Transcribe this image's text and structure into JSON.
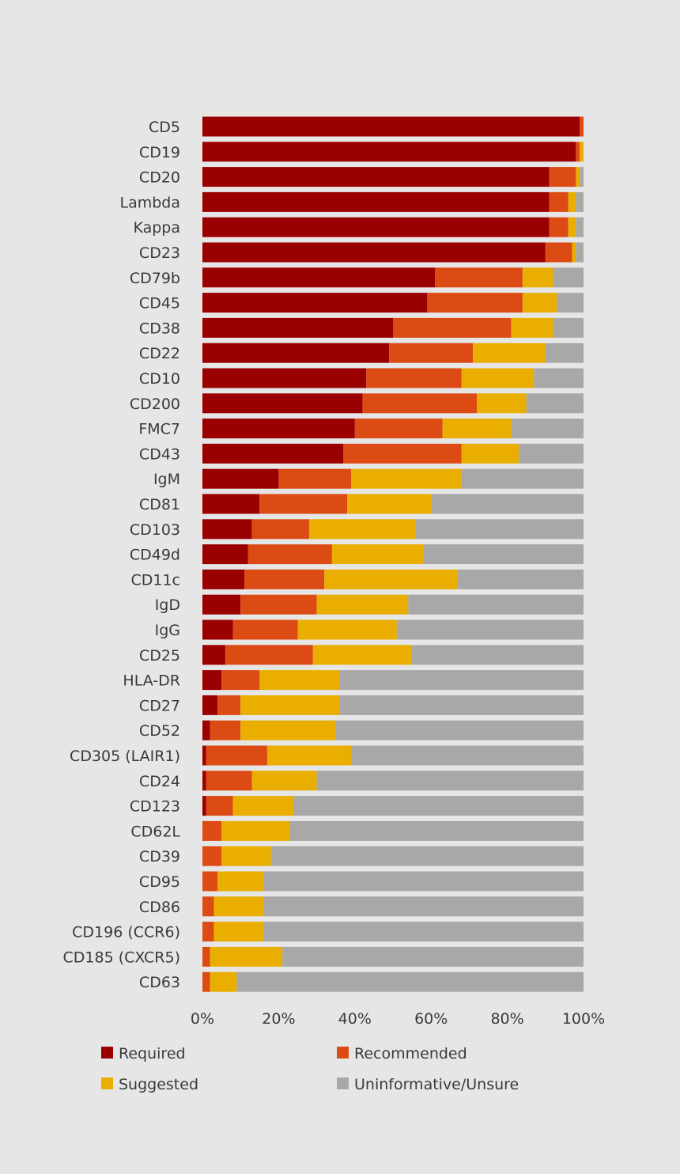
{
  "chart_data": {
    "type": "bar",
    "orientation": "horizontal",
    "stacked": "percent",
    "categories": [
      "CD5",
      "CD19",
      "CD20",
      "Lambda",
      "Kappa",
      "CD23",
      "CD79b",
      "CD45",
      "CD38",
      "CD22",
      "CD10",
      "CD200",
      "FMC7",
      "CD43",
      "IgM",
      "CD81",
      "CD103",
      "CD49d",
      "CD11c",
      "IgD",
      "IgG",
      "CD25",
      "HLA-DR",
      "CD27",
      "CD52",
      "CD305 (LAIR1)",
      "CD24",
      "CD123",
      "CD62L",
      "CD39",
      "CD95",
      "CD86",
      "CD196 (CCR6)",
      "CD185 (CXCR5)",
      "CD63"
    ],
    "series": [
      {
        "name": "Required",
        "color": "#9b0000",
        "values": [
          99,
          98,
          91,
          91,
          91,
          90,
          61,
          59,
          50,
          49,
          43,
          42,
          40,
          37,
          20,
          15,
          13,
          12,
          11,
          10,
          8,
          6,
          5,
          4,
          2,
          1,
          1,
          1,
          0,
          0,
          0,
          0,
          0,
          0,
          0
        ]
      },
      {
        "name": "Recommended",
        "color": "#dc4b14",
        "values": [
          1,
          1,
          7,
          5,
          5,
          7,
          23,
          25,
          31,
          22,
          25,
          30,
          23,
          31,
          19,
          23,
          15,
          22,
          21,
          20,
          17,
          23,
          10,
          6,
          8,
          16,
          12,
          7,
          5,
          5,
          4,
          3,
          3,
          2,
          2
        ]
      },
      {
        "name": "Suggested",
        "color": "#e9ae00",
        "values": [
          0,
          1,
          1,
          2,
          2,
          1,
          8,
          9,
          11,
          19,
          19,
          13,
          18,
          15,
          29,
          22,
          28,
          24,
          35,
          24,
          26,
          26,
          21,
          26,
          25,
          22,
          17,
          16,
          18,
          13,
          12,
          13,
          13,
          19,
          7
        ]
      },
      {
        "name": "Uninformative/Unsure",
        "color": "#a8a8a8",
        "values": [
          0,
          0,
          1,
          2,
          2,
          2,
          8,
          7,
          8,
          10,
          13,
          15,
          19,
          17,
          32,
          40,
          44,
          42,
          33,
          46,
          49,
          45,
          64,
          64,
          65,
          61,
          70,
          76,
          77,
          82,
          84,
          84,
          84,
          79,
          91
        ]
      }
    ],
    "x_ticks": [
      "0%",
      "20%",
      "40%",
      "60%",
      "80%",
      "100%"
    ],
    "xlim": [
      0,
      100
    ],
    "title": "",
    "xlabel": "",
    "ylabel": "",
    "grid": false,
    "legend_position": "bottom"
  }
}
